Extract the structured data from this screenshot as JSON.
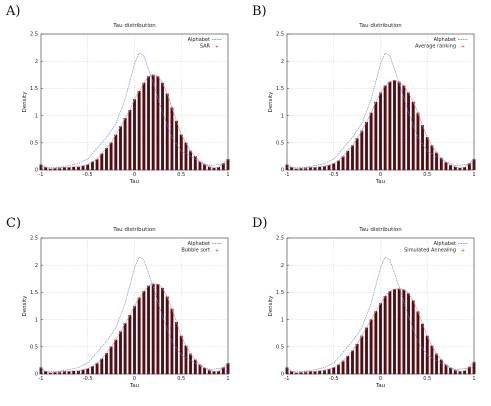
{
  "colors": {
    "bar": "#5a0a10",
    "bar_outline": "#2a0206",
    "fit_red": "#e8888e",
    "alphabet_blue": "#7a7ad8",
    "grid": "#bcbcbc"
  },
  "chart_data": [
    {
      "panel_label": "A)",
      "type": "bar",
      "title": "Tau distribution",
      "xlabel": "Tau",
      "ylabel": "Density",
      "xlim": [
        -1,
        1
      ],
      "ylim": [
        0,
        2.5
      ],
      "xticks": [
        "-1",
        "-0.5",
        "0",
        "0.5",
        "1"
      ],
      "yticks": [
        "0",
        "0.5",
        "1",
        "1.5",
        "2",
        "2.5"
      ],
      "grid": true,
      "legend_position": "top-right",
      "series": [
        {
          "name": "Alphabet",
          "kind": "line",
          "x": [
            -1,
            -0.9,
            -0.8,
            -0.7,
            -0.6,
            -0.5,
            -0.4,
            -0.3,
            -0.2,
            -0.1,
            0,
            0.05,
            0.1,
            0.2,
            0.3,
            0.4,
            0.5,
            0.6,
            0.7,
            0.8,
            0.9,
            1
          ],
          "y": [
            0.05,
            0.04,
            0.05,
            0.08,
            0.12,
            0.2,
            0.4,
            0.6,
            0.85,
            1.3,
            1.95,
            2.15,
            2.1,
            1.6,
            1.05,
            0.6,
            0.35,
            0.25,
            0.15,
            0.08,
            0.1,
            0.12
          ]
        },
        {
          "name": "SAR",
          "kind": "bar",
          "x": [
            -1,
            -0.95,
            -0.9,
            -0.85,
            -0.8,
            -0.75,
            -0.7,
            -0.65,
            -0.6,
            -0.55,
            -0.5,
            -0.45,
            -0.4,
            -0.35,
            -0.3,
            -0.25,
            -0.2,
            -0.15,
            -0.1,
            -0.05,
            0,
            0.05,
            0.1,
            0.15,
            0.2,
            0.25,
            0.3,
            0.35,
            0.4,
            0.45,
            0.5,
            0.55,
            0.6,
            0.65,
            0.7,
            0.75,
            0.8,
            0.85,
            0.9,
            0.95,
            1
          ],
          "y": [
            0.1,
            0.05,
            0.02,
            0.03,
            0.04,
            0.05,
            0.05,
            0.06,
            0.06,
            0.08,
            0.1,
            0.15,
            0.2,
            0.3,
            0.4,
            0.5,
            0.65,
            0.8,
            0.95,
            1.1,
            1.3,
            1.45,
            1.6,
            1.72,
            1.75,
            1.72,
            1.6,
            1.4,
            1.15,
            0.9,
            0.65,
            0.5,
            0.35,
            0.25,
            0.15,
            0.1,
            0.06,
            0.04,
            0.05,
            0.12,
            0.2
          ]
        }
      ]
    },
    {
      "panel_label": "B)",
      "type": "bar",
      "title": "Tau distribution",
      "xlabel": "Tau",
      "ylabel": "Density",
      "xlim": [
        -1,
        1
      ],
      "ylim": [
        0,
        2.5
      ],
      "xticks": [
        "-1",
        "-0.5",
        "0",
        "0.5",
        "1"
      ],
      "yticks": [
        "0",
        "0.5",
        "1",
        "1.5",
        "2",
        "2.5"
      ],
      "grid": true,
      "legend_position": "top-right",
      "series": [
        {
          "name": "Alphabet",
          "kind": "line",
          "x": [
            -1,
            -0.9,
            -0.8,
            -0.7,
            -0.6,
            -0.5,
            -0.4,
            -0.3,
            -0.2,
            -0.1,
            0,
            0.05,
            0.1,
            0.2,
            0.3,
            0.4,
            0.5,
            0.6,
            0.7,
            0.8,
            0.9,
            1
          ],
          "y": [
            0.05,
            0.04,
            0.05,
            0.08,
            0.12,
            0.2,
            0.4,
            0.6,
            0.85,
            1.3,
            1.95,
            2.15,
            2.1,
            1.6,
            1.05,
            0.6,
            0.35,
            0.25,
            0.15,
            0.08,
            0.1,
            0.12
          ]
        },
        {
          "name": "Average ranking",
          "kind": "bar",
          "x": [
            -1,
            -0.95,
            -0.9,
            -0.85,
            -0.8,
            -0.75,
            -0.7,
            -0.65,
            -0.6,
            -0.55,
            -0.5,
            -0.45,
            -0.4,
            -0.35,
            -0.3,
            -0.25,
            -0.2,
            -0.15,
            -0.1,
            -0.05,
            0,
            0.05,
            0.1,
            0.15,
            0.2,
            0.25,
            0.3,
            0.35,
            0.4,
            0.45,
            0.5,
            0.55,
            0.6,
            0.65,
            0.7,
            0.75,
            0.8,
            0.85,
            0.9,
            0.95,
            1
          ],
          "y": [
            0.1,
            0.05,
            0.02,
            0.03,
            0.04,
            0.05,
            0.05,
            0.06,
            0.07,
            0.09,
            0.12,
            0.17,
            0.25,
            0.35,
            0.45,
            0.58,
            0.72,
            0.88,
            1.05,
            1.25,
            1.42,
            1.55,
            1.62,
            1.65,
            1.62,
            1.55,
            1.42,
            1.25,
            1.05,
            0.82,
            0.6,
            0.45,
            0.32,
            0.22,
            0.14,
            0.09,
            0.06,
            0.04,
            0.05,
            0.12,
            0.2
          ]
        }
      ]
    },
    {
      "panel_label": "C)",
      "type": "bar",
      "title": "Tau distribution",
      "xlabel": "Tau",
      "ylabel": "Density",
      "xlim": [
        -1,
        1
      ],
      "ylim": [
        0,
        2.5
      ],
      "xticks": [
        "-1",
        "-0.5",
        "0",
        "0.5",
        "1"
      ],
      "yticks": [
        "0",
        "0.5",
        "1",
        "1.5",
        "2",
        "2.5"
      ],
      "grid": true,
      "legend_position": "top-right",
      "series": [
        {
          "name": "Alphabet",
          "kind": "line",
          "x": [
            -1,
            -0.9,
            -0.8,
            -0.7,
            -0.6,
            -0.5,
            -0.4,
            -0.3,
            -0.2,
            -0.1,
            0,
            0.05,
            0.1,
            0.2,
            0.3,
            0.4,
            0.5,
            0.6,
            0.7,
            0.8,
            0.9,
            1
          ],
          "y": [
            0.05,
            0.04,
            0.05,
            0.08,
            0.12,
            0.2,
            0.4,
            0.6,
            0.85,
            1.3,
            1.95,
            2.15,
            2.1,
            1.6,
            1.05,
            0.6,
            0.35,
            0.25,
            0.15,
            0.08,
            0.1,
            0.12
          ]
        },
        {
          "name": "Bubble sort",
          "kind": "bar",
          "x": [
            -1,
            -0.95,
            -0.9,
            -0.85,
            -0.8,
            -0.75,
            -0.7,
            -0.65,
            -0.6,
            -0.55,
            -0.5,
            -0.45,
            -0.4,
            -0.35,
            -0.3,
            -0.25,
            -0.2,
            -0.15,
            -0.1,
            -0.05,
            0,
            0.05,
            0.1,
            0.15,
            0.2,
            0.25,
            0.3,
            0.35,
            0.4,
            0.45,
            0.5,
            0.55,
            0.6,
            0.65,
            0.7,
            0.75,
            0.8,
            0.85,
            0.9,
            0.95,
            1
          ],
          "y": [
            0.12,
            0.05,
            0.02,
            0.03,
            0.04,
            0.05,
            0.05,
            0.06,
            0.06,
            0.08,
            0.1,
            0.14,
            0.2,
            0.28,
            0.38,
            0.5,
            0.63,
            0.78,
            0.93,
            1.08,
            1.25,
            1.4,
            1.52,
            1.62,
            1.66,
            1.65,
            1.58,
            1.42,
            1.2,
            0.95,
            0.7,
            0.52,
            0.37,
            0.26,
            0.17,
            0.11,
            0.07,
            0.05,
            0.05,
            0.12,
            0.2
          ]
        }
      ]
    },
    {
      "panel_label": "D)",
      "type": "bar",
      "title": "Tau distribution",
      "xlabel": "Tau",
      "ylabel": "Density",
      "xlim": [
        -1,
        1
      ],
      "ylim": [
        0,
        2.5
      ],
      "xticks": [
        "-1",
        "-0.5",
        "0",
        "0.5",
        "1"
      ],
      "yticks": [
        "0",
        "0.5",
        "1",
        "1.5",
        "2",
        "2.5"
      ],
      "grid": true,
      "legend_position": "top-right",
      "series": [
        {
          "name": "Alphabet",
          "kind": "line",
          "x": [
            -1,
            -0.9,
            -0.8,
            -0.7,
            -0.6,
            -0.5,
            -0.4,
            -0.3,
            -0.2,
            -0.1,
            0,
            0.05,
            0.1,
            0.2,
            0.3,
            0.4,
            0.5,
            0.6,
            0.7,
            0.8,
            0.9,
            1
          ],
          "y": [
            0.05,
            0.04,
            0.05,
            0.08,
            0.12,
            0.2,
            0.4,
            0.6,
            0.85,
            1.3,
            1.95,
            2.15,
            2.1,
            1.6,
            1.05,
            0.6,
            0.35,
            0.25,
            0.15,
            0.08,
            0.1,
            0.12
          ]
        },
        {
          "name": "Simulated Annealing",
          "kind": "bar",
          "x": [
            -1,
            -0.95,
            -0.9,
            -0.85,
            -0.8,
            -0.75,
            -0.7,
            -0.65,
            -0.6,
            -0.55,
            -0.5,
            -0.45,
            -0.4,
            -0.35,
            -0.3,
            -0.25,
            -0.2,
            -0.15,
            -0.1,
            -0.05,
            0,
            0.05,
            0.1,
            0.15,
            0.2,
            0.25,
            0.3,
            0.35,
            0.4,
            0.45,
            0.5,
            0.55,
            0.6,
            0.65,
            0.7,
            0.75,
            0.8,
            0.85,
            0.9,
            0.95,
            1
          ],
          "y": [
            0.12,
            0.05,
            0.02,
            0.03,
            0.04,
            0.05,
            0.05,
            0.06,
            0.07,
            0.09,
            0.12,
            0.17,
            0.24,
            0.33,
            0.43,
            0.55,
            0.7,
            0.85,
            1.0,
            1.15,
            1.3,
            1.43,
            1.52,
            1.56,
            1.57,
            1.55,
            1.48,
            1.35,
            1.15,
            0.92,
            0.7,
            0.52,
            0.37,
            0.26,
            0.17,
            0.11,
            0.07,
            0.05,
            0.06,
            0.13,
            0.22
          ]
        }
      ]
    }
  ]
}
